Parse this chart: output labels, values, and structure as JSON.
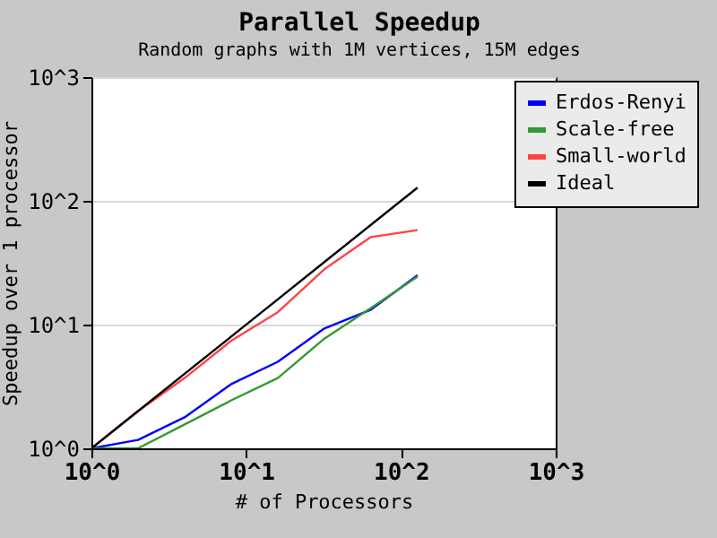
{
  "chart_data": {
    "type": "line",
    "title": "Parallel Speedup",
    "subtitle": "Random graphs with 1M vertices, 15M edges",
    "xlabel": "# of Processors",
    "ylabel": "Speedup over 1 processor",
    "x": [
      1,
      2,
      4,
      8,
      16,
      32,
      64,
      128
    ],
    "series": [
      {
        "name": "Erdos-Renyi",
        "color": "#0000ff",
        "values": [
          1,
          1.17,
          1.78,
          3.3,
          5.0,
          9.3,
          13.2,
          25
        ]
      },
      {
        "name": "Scale-free",
        "color": "#339933",
        "values": [
          1,
          1.0,
          1.56,
          2.44,
          3.7,
          7.7,
          13.6,
          24.4
        ]
      },
      {
        "name": "Small-world",
        "color": "#ff4444",
        "values": [
          1,
          2,
          3.7,
          7.4,
          12.6,
          28,
          51,
          58
        ]
      },
      {
        "name": "Ideal",
        "color": "#000000",
        "values": [
          1,
          2,
          4,
          8,
          16,
          32,
          64,
          128
        ]
      }
    ],
    "log": "xy",
    "xlim": [
      1,
      1000
    ],
    "ylim": [
      1,
      1000
    ],
    "xticks": [
      {
        "value": 1,
        "label": "10^0"
      },
      {
        "value": 10,
        "label": "10^1"
      },
      {
        "value": 100,
        "label": "10^2"
      },
      {
        "value": 1000,
        "label": "10^3"
      }
    ],
    "yticks": [
      {
        "value": 1,
        "label": "10^0"
      },
      {
        "value": 10,
        "label": "10^1"
      },
      {
        "value": 100,
        "label": "10^2"
      },
      {
        "value": 1000,
        "label": "10^3"
      }
    ],
    "grid": "y",
    "legend": "top right",
    "marker": "none",
    "line_style": "solid"
  }
}
